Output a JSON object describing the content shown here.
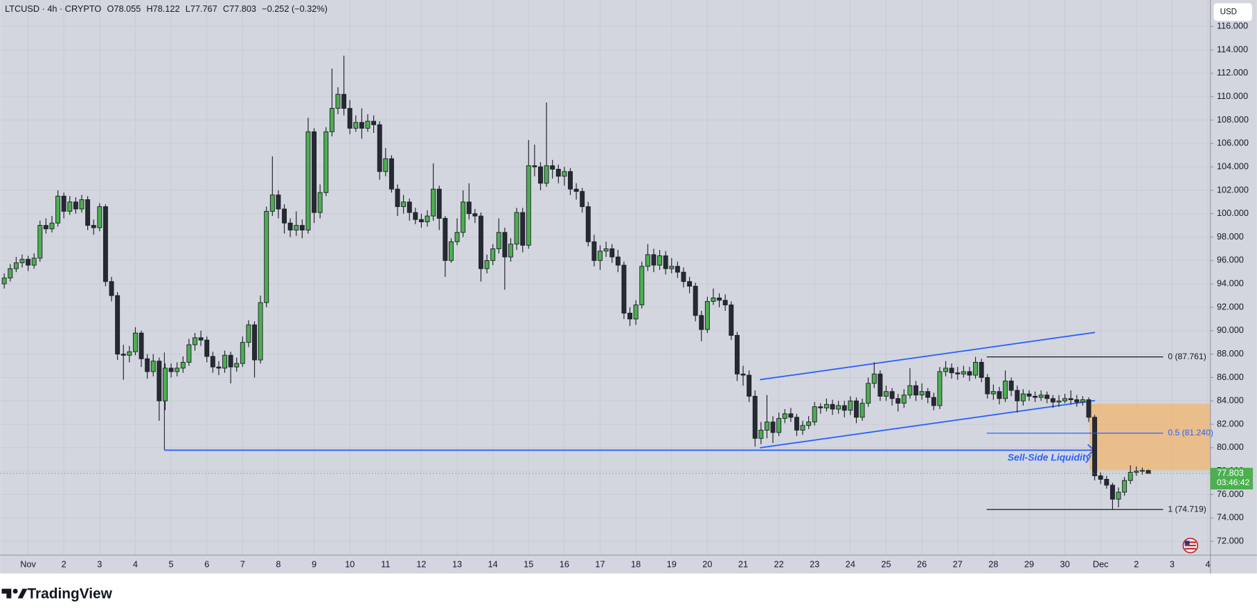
{
  "chart_data": {
    "type": "candlestick",
    "header": {
      "symbol": "LTCUSD · 4h · CRYPTO",
      "open": "O78.055",
      "high": "H78.122",
      "low": "L77.767",
      "close": "C77.803",
      "change": "−0.252 (−0.32%)"
    },
    "currency": "USD",
    "brand": "TradingView",
    "up_color": "#4caf50",
    "down_color": "#262a33",
    "x": [
      -16,
      -12,
      -8,
      -4,
      0,
      4,
      8,
      12,
      16,
      20,
      24,
      28,
      32,
      36,
      40,
      44,
      48,
      52,
      56,
      60,
      64,
      68,
      72,
      76,
      80,
      84,
      88,
      92,
      96,
      100,
      104,
      108,
      112,
      116,
      120,
      124,
      128,
      132,
      136,
      140,
      144,
      148,
      152,
      156,
      160,
      164,
      168,
      172,
      176,
      180,
      184,
      188,
      192,
      196,
      200,
      204,
      208,
      212,
      216,
      220,
      224,
      228,
      232,
      236,
      240,
      244,
      248,
      252,
      256,
      260,
      264,
      268,
      272,
      276,
      280,
      284,
      288,
      292,
      296,
      300,
      304,
      308,
      312,
      316,
      320,
      324,
      328,
      332,
      336,
      340,
      344,
      348,
      352,
      356,
      360,
      364,
      368,
      372,
      376,
      380,
      384,
      388,
      392,
      396,
      400,
      404,
      408,
      412,
      416,
      420,
      424,
      428,
      432,
      436,
      440,
      444,
      448,
      452,
      456,
      460,
      464,
      468,
      472,
      476,
      480,
      484,
      488,
      492,
      496,
      500,
      504,
      508,
      512,
      516,
      520,
      524,
      528,
      532,
      536,
      540,
      544,
      548,
      552,
      556,
      560,
      564,
      568,
      572,
      576,
      580,
      584,
      588,
      592,
      596,
      600,
      604,
      608,
      612,
      616,
      620,
      624,
      628,
      632,
      636,
      640,
      644,
      648,
      652,
      656,
      660,
      664,
      668,
      672,
      676,
      680,
      684,
      688,
      692,
      696,
      700,
      704,
      708,
      712,
      716,
      720,
      724,
      728,
      732,
      736,
      740,
      744,
      748,
      752
    ],
    "open": [
      94.0,
      94.5,
      95.3,
      95.8,
      96.1,
      95.6,
      96.2,
      99.0,
      98.7,
      99.2,
      101.5,
      100.2,
      101.0,
      100.4,
      101.2,
      99.0,
      98.8,
      100.6,
      94.2,
      93.0,
      88.0,
      87.9,
      88.2,
      89.8,
      87.6,
      86.5,
      87.4,
      84.0,
      86.8,
      86.5,
      86.8,
      87.3,
      88.8,
      89.4,
      89.2,
      87.8,
      86.9,
      86.8,
      87.9,
      86.9,
      87.2,
      89.0,
      90.5,
      87.5,
      92.4,
      100.2,
      101.6,
      100.4,
      99.2,
      98.6,
      99.0,
      98.6,
      107.0,
      100.1,
      101.8,
      107.0,
      109.0,
      110.2,
      109.0,
      107.3,
      107.8,
      107.3,
      107.9,
      107.6,
      103.6,
      104.7,
      102.1,
      100.6,
      101.0,
      100.1,
      99.5,
      99.3,
      99.8,
      102.1,
      99.6,
      96.0,
      97.6,
      98.4,
      101.0,
      100.0,
      99.8,
      95.3,
      96.0,
      97.0,
      98.4,
      96.3,
      97.4,
      100.1,
      97.3,
      104.1,
      104.0,
      102.6,
      104.1,
      103.8,
      103.2,
      103.6,
      102.1,
      101.9,
      100.6,
      97.6,
      96.0,
      96.8,
      97.0,
      96.3,
      95.6,
      91.5,
      91.0,
      92.2,
      95.5,
      96.5,
      95.6,
      96.4,
      95.3,
      95.5,
      95.0,
      94.2,
      93.8,
      91.3,
      90.1,
      92.5,
      92.8,
      92.6,
      92.2,
      89.6,
      86.3,
      86.2,
      84.4,
      80.8,
      81.5,
      82.2,
      81.3,
      82.5,
      82.9,
      82.6,
      81.5,
      81.9,
      82.2,
      83.5,
      83.4,
      83.7,
      83.3,
      83.6,
      83.2,
      84.0,
      82.6,
      83.8,
      85.5,
      86.3,
      84.4,
      84.8,
      84.2,
      83.8,
      84.5,
      85.3,
      84.5,
      84.8,
      84.3,
      83.6,
      86.5,
      86.8,
      86.4,
      86.3,
      86.5,
      86.2,
      87.3,
      86.0,
      84.6,
      84.8,
      84.2,
      85.7,
      84.9,
      84.0,
      84.6,
      84.4,
      84.3,
      84.5,
      84.2,
      83.9,
      84.0,
      84.2,
      84.1,
      83.9,
      84.1,
      82.6,
      77.6,
      77.3,
      76.8,
      75.6,
      76.2,
      77.2,
      77.9,
      78.0,
      78.055
    ],
    "high": [
      94.9,
      95.7,
      96.3,
      96.5,
      96.4,
      96.6,
      99.4,
      99.6,
      99.8,
      102.0,
      101.8,
      101.5,
      101.4,
      101.6,
      101.5,
      99.5,
      100.9,
      100.8,
      94.6,
      93.3,
      88.8,
      88.7,
      90.3,
      90.0,
      88.0,
      88.0,
      87.7,
      87.2,
      87.2,
      87.3,
      87.8,
      89.3,
      89.8,
      90.0,
      89.5,
      88.2,
      87.4,
      88.3,
      88.2,
      87.7,
      89.5,
      90.9,
      90.8,
      93.0,
      100.6,
      104.9,
      102.0,
      100.8,
      99.6,
      100.2,
      99.5,
      108.2,
      107.3,
      102.5,
      107.4,
      112.4,
      110.8,
      113.5,
      109.7,
      108.4,
      109.0,
      108.5,
      108.4,
      107.9,
      105.6,
      105.0,
      102.5,
      101.6,
      101.3,
      100.5,
      100.0,
      100.3,
      104.3,
      102.4,
      99.8,
      97.9,
      99.6,
      102.0,
      102.6,
      100.4,
      100.1,
      96.5,
      97.4,
      99.6,
      98.8,
      97.9,
      100.5,
      100.5,
      106.3,
      105.9,
      104.4,
      109.5,
      104.6,
      104.2,
      104.0,
      103.9,
      102.6,
      102.2,
      101.0,
      98.2,
      97.3,
      97.6,
      97.4,
      96.9,
      95.9,
      92.0,
      92.6,
      95.9,
      97.4,
      97.0,
      96.9,
      96.8,
      96.2,
      95.9,
      95.4,
      94.6,
      94.1,
      91.7,
      92.9,
      93.6,
      93.2,
      93.1,
      92.5,
      89.9,
      87.0,
      86.6,
      84.9,
      82.2,
      84.5,
      82.7,
      83.0,
      83.3,
      83.4,
      82.9,
      82.3,
      82.7,
      83.9,
      83.8,
      84.2,
      84.1,
      84.0,
      84.0,
      84.4,
      84.3,
      84.2,
      86.0,
      87.3,
      86.6,
      85.3,
      85.1,
      84.6,
      85.0,
      86.8,
      85.7,
      85.5,
      85.1,
      84.7,
      86.9,
      87.4,
      87.2,
      86.9,
      87.0,
      86.9,
      87.761,
      87.6,
      86.3,
      85.4,
      85.2,
      86.6,
      86.0,
      85.3,
      85.0,
      84.9,
      84.8,
      84.9,
      84.8,
      84.5,
      84.5,
      84.6,
      84.9,
      84.5,
      84.4,
      84.3,
      82.8,
      77.9,
      77.6,
      77.0,
      76.6,
      77.5,
      78.5,
      78.4,
      78.3,
      78.122
    ],
    "low": [
      93.6,
      94.2,
      95.0,
      95.4,
      95.1,
      95.3,
      95.9,
      98.3,
      98.4,
      98.9,
      99.6,
      99.9,
      100.0,
      100.1,
      98.6,
      98.2,
      98.5,
      93.8,
      92.5,
      87.5,
      85.8,
      87.3,
      87.9,
      86.9,
      85.9,
      86.1,
      82.3,
      83.2,
      86.0,
      86.1,
      86.4,
      87.0,
      88.3,
      88.7,
      87.3,
      86.4,
      86.2,
      86.4,
      85.5,
      86.5,
      86.9,
      88.6,
      86.0,
      87.2,
      92.0,
      99.8,
      99.6,
      98.3,
      98.0,
      98.1,
      97.9,
      98.3,
      99.2,
      99.6,
      101.5,
      106.6,
      108.5,
      108.4,
      106.8,
      107.0,
      106.4,
      107.0,
      106.9,
      102.9,
      103.2,
      101.8,
      99.8,
      100.0,
      99.4,
      99.1,
      98.8,
      98.9,
      99.4,
      98.6,
      94.6,
      95.8,
      97.3,
      98.0,
      99.5,
      99.2,
      94.2,
      94.9,
      95.6,
      96.6,
      93.5,
      95.9,
      96.9,
      96.7,
      97.0,
      103.2,
      102.0,
      102.3,
      103.0,
      102.6,
      102.4,
      101.6,
      101.2,
      100.1,
      97.2,
      95.5,
      95.2,
      96.3,
      95.8,
      95.0,
      91.0,
      90.4,
      90.5,
      91.9,
      95.1,
      95.0,
      95.2,
      94.8,
      94.9,
      94.5,
      93.7,
      93.2,
      90.8,
      89.1,
      89.8,
      92.2,
      92.0,
      91.7,
      89.2,
      85.7,
      85.3,
      83.9,
      80.1,
      80.3,
      80.8,
      80.4,
      81.0,
      82.1,
      82.2,
      81.0,
      81.1,
      81.6,
      81.9,
      82.9,
      83.1,
      82.8,
      82.9,
      82.6,
      82.8,
      82.1,
      82.3,
      83.5,
      85.1,
      84.0,
      84.0,
      83.6,
      83.1,
      83.4,
      84.2,
      84.0,
      84.1,
      83.8,
      83.2,
      83.3,
      86.1,
      85.9,
      85.8,
      86.0,
      85.7,
      85.9,
      85.6,
      84.2,
      84.1,
      83.7,
      83.9,
      84.4,
      83.0,
      83.6,
      84.0,
      83.9,
      84.0,
      83.8,
      83.4,
      83.5,
      83.8,
      83.7,
      83.5,
      83.6,
      82.2,
      77.2,
      76.9,
      76.5,
      74.719,
      74.9,
      75.9,
      76.9,
      77.6,
      77.7,
      77.767
    ],
    "close": [
      94.5,
      95.3,
      95.8,
      96.1,
      95.6,
      96.2,
      99.0,
      98.7,
      99.2,
      101.5,
      100.2,
      101.0,
      100.4,
      101.2,
      99.0,
      98.8,
      100.6,
      94.2,
      93.0,
      88.0,
      87.9,
      88.2,
      89.8,
      87.6,
      86.5,
      87.4,
      84.0,
      86.8,
      86.5,
      86.8,
      87.3,
      88.8,
      89.4,
      89.2,
      87.8,
      86.9,
      86.8,
      87.9,
      86.9,
      87.2,
      89.0,
      90.5,
      87.5,
      92.4,
      100.2,
      101.6,
      100.4,
      99.2,
      98.6,
      99.0,
      98.6,
      107.0,
      100.1,
      101.8,
      107.0,
      109.0,
      110.2,
      109.0,
      107.3,
      107.8,
      107.3,
      107.9,
      107.6,
      103.6,
      104.7,
      102.1,
      100.6,
      101.0,
      100.1,
      99.5,
      99.3,
      99.8,
      102.1,
      99.6,
      96.0,
      97.6,
      98.4,
      101.0,
      100.0,
      99.8,
      95.3,
      96.0,
      97.0,
      98.4,
      96.3,
      97.4,
      100.1,
      97.3,
      104.1,
      104.0,
      102.6,
      104.1,
      103.8,
      103.2,
      103.6,
      102.1,
      101.9,
      100.6,
      97.6,
      96.0,
      96.8,
      97.0,
      96.3,
      95.6,
      91.5,
      91.0,
      92.2,
      95.5,
      96.5,
      95.6,
      96.4,
      95.3,
      95.5,
      95.0,
      94.2,
      93.8,
      91.3,
      90.1,
      92.5,
      92.8,
      92.6,
      92.2,
      89.6,
      86.3,
      86.2,
      84.4,
      80.8,
      81.5,
      82.2,
      81.3,
      82.5,
      82.9,
      82.6,
      81.5,
      81.9,
      82.2,
      83.5,
      83.4,
      83.7,
      83.3,
      83.6,
      83.2,
      84.0,
      82.6,
      83.8,
      85.5,
      86.3,
      84.4,
      84.8,
      84.2,
      83.8,
      84.5,
      85.3,
      84.5,
      84.8,
      84.3,
      83.6,
      86.5,
      86.8,
      86.4,
      86.3,
      86.5,
      86.2,
      87.3,
      86.0,
      84.6,
      84.8,
      84.2,
      85.7,
      84.9,
      84.0,
      84.6,
      84.4,
      84.3,
      84.5,
      84.2,
      83.9,
      84.0,
      84.2,
      84.1,
      83.9,
      84.1,
      82.6,
      77.6,
      77.3,
      76.8,
      75.6,
      76.2,
      77.2,
      77.9,
      78.0,
      78.055,
      77.803
    ],
    "last_price": 77.803,
    "countdown": "03:46:42",
    "fib_levels": [
      {
        "value": 87.761,
        "label": "0 (87.761)"
      },
      {
        "value": 81.24,
        "label": "0.5 (81.240)"
      },
      {
        "value": 74.719,
        "label": "1 (74.719)"
      }
    ],
    "annotation": "Sell-Side Liquidity",
    "xlim": [
      -18.8,
      793.7
    ],
    "ylim": [
      70.82,
      118.26
    ],
    "yticks": [
      {
        "value": 72,
        "label": "72.000"
      },
      {
        "value": 74,
        "label": "74.000"
      },
      {
        "value": 76,
        "label": "76.000"
      },
      {
        "value": 78,
        "label": "78.000"
      },
      {
        "value": 80,
        "label": "80.000"
      },
      {
        "value": 82,
        "label": "82.000"
      },
      {
        "value": 84,
        "label": "84.000"
      },
      {
        "value": 86,
        "label": "86.000"
      },
      {
        "value": 88,
        "label": "88.000"
      },
      {
        "value": 90,
        "label": "90.000"
      },
      {
        "value": 92,
        "label": "92.000"
      },
      {
        "value": 94,
        "label": "94.000"
      },
      {
        "value": 96,
        "label": "96.000"
      },
      {
        "value": 98,
        "label": "98.000"
      },
      {
        "value": 100,
        "label": "100.000"
      },
      {
        "value": 102,
        "label": "102.000"
      },
      {
        "value": 104,
        "label": "104.000"
      },
      {
        "value": 106,
        "label": "106.000"
      },
      {
        "value": 108,
        "label": "108.000"
      },
      {
        "value": 110,
        "label": "110.000"
      },
      {
        "value": 112,
        "label": "112.000"
      },
      {
        "value": 114,
        "label": "114.000"
      },
      {
        "value": 116,
        "label": "116.000"
      }
    ],
    "xticks": [
      {
        "value": 0,
        "label": "Nov"
      },
      {
        "value": 24,
        "label": "2"
      },
      {
        "value": 48,
        "label": "3"
      },
      {
        "value": 72,
        "label": "4"
      },
      {
        "value": 96,
        "label": "5"
      },
      {
        "value": 120,
        "label": "6"
      },
      {
        "value": 144,
        "label": "7"
      },
      {
        "value": 168,
        "label": "8"
      },
      {
        "value": 192,
        "label": "9"
      },
      {
        "value": 216,
        "label": "10"
      },
      {
        "value": 240,
        "label": "11"
      },
      {
        "value": 264,
        "label": "12"
      },
      {
        "value": 288,
        "label": "13"
      },
      {
        "value": 312,
        "label": "14"
      },
      {
        "value": 336,
        "label": "15"
      },
      {
        "value": 360,
        "label": "16"
      },
      {
        "value": 384,
        "label": "17"
      },
      {
        "value": 408,
        "label": "18"
      },
      {
        "value": 432,
        "label": "19"
      },
      {
        "value": 456,
        "label": "20"
      },
      {
        "value": 480,
        "label": "21"
      },
      {
        "value": 504,
        "label": "22"
      },
      {
        "value": 528,
        "label": "23"
      },
      {
        "value": 552,
        "label": "24"
      },
      {
        "value": 576,
        "label": "25"
      },
      {
        "value": 600,
        "label": "26"
      },
      {
        "value": 624,
        "label": "27"
      },
      {
        "value": 648,
        "label": "28"
      },
      {
        "value": 672,
        "label": "29"
      },
      {
        "value": 696,
        "label": "30"
      },
      {
        "value": 720,
        "label": "Dec"
      },
      {
        "value": 744,
        "label": "2"
      },
      {
        "value": 768,
        "label": "3"
      },
      {
        "value": 792,
        "label": "4"
      }
    ]
  }
}
